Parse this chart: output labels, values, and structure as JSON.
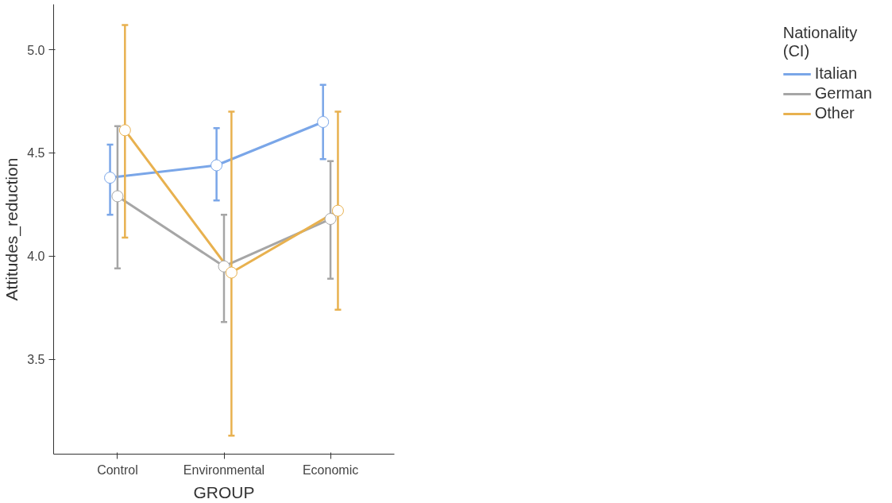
{
  "chart_data": {
    "type": "line",
    "xlabel": "GROUP",
    "ylabel": "Attitudes_reduction",
    "legend_title": "Nationality\n(CI)",
    "categories": [
      "Control",
      "Environmental",
      "Economic"
    ],
    "series": [
      {
        "name": "Italian",
        "color": "#7aa6e8",
        "values": [
          4.38,
          4.44,
          4.65
        ],
        "errors": [
          [
            4.2,
            4.54
          ],
          [
            4.27,
            4.62
          ],
          [
            4.47,
            4.83
          ]
        ]
      },
      {
        "name": "German",
        "color": "#a6a6a6",
        "values": [
          4.29,
          3.95,
          4.18
        ],
        "errors": [
          [
            3.94,
            4.63
          ],
          [
            3.68,
            4.2
          ],
          [
            3.89,
            4.46
          ]
        ]
      },
      {
        "name": "Other",
        "color": "#e8b14f",
        "values": [
          4.61,
          3.92,
          4.22
        ],
        "errors": [
          [
            4.09,
            5.12
          ],
          [
            3.13,
            4.7
          ],
          [
            3.74,
            4.7
          ]
        ]
      }
    ],
    "ylim": [
      3.04,
      5.22
    ],
    "yticks": [
      {
        "value": 3.5,
        "label": "3.5"
      },
      {
        "value": 4.0,
        "label": "4.0"
      },
      {
        "value": 4.5,
        "label": "4.5"
      },
      {
        "value": 5.0,
        "label": "5.0"
      }
    ],
    "grid": false,
    "legend": "right",
    "marker": "circle",
    "line_style": "solid"
  }
}
